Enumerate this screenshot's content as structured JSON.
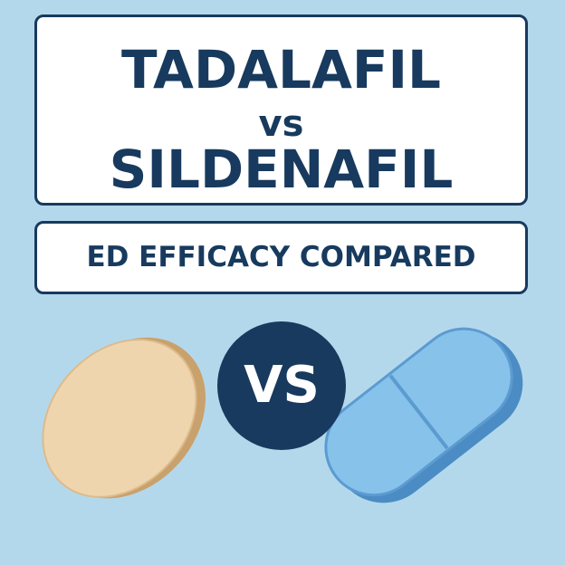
{
  "title": {
    "line1": "TADALAFIL",
    "line2": "vs",
    "line3": "SILDENAFIL"
  },
  "subtitle": "ED EFFICACY COMPARED",
  "vs_badge": "VS",
  "colors": {
    "background": "#b4d8eb",
    "navy": "#173a5e",
    "tan_pill": "#efd5ae",
    "blue_pill": "#86c2ea"
  }
}
